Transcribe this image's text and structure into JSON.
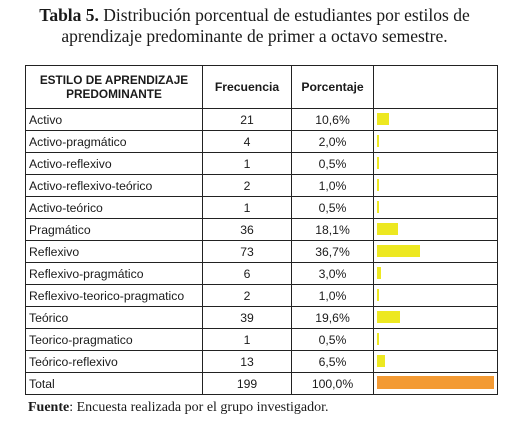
{
  "caption": {
    "label": "Tabla 5.",
    "text": "Distribución porcentual de estudiantes por estilos de aprendizaje predominante de primer a octavo semestre."
  },
  "table": {
    "headers": [
      "ESTILO DE APRENDIZAJE PREDOMINANTE",
      "Frecuencia",
      "Porcentaje",
      ""
    ],
    "rows": [
      {
        "style": "Activo",
        "frequency": "21",
        "percentage": "10,6%",
        "share": 10.6
      },
      {
        "style": "Activo-pragmático",
        "frequency": "4",
        "percentage": "2,0%",
        "share": 2.0
      },
      {
        "style": "Activo-reflexivo",
        "frequency": "1",
        "percentage": "0,5%",
        "share": 0.5
      },
      {
        "style": "Activo-reflexivo-teórico",
        "frequency": "2",
        "percentage": "1,0%",
        "share": 1.0
      },
      {
        "style": "Activo-teórico",
        "frequency": "1",
        "percentage": "0,5%",
        "share": 0.5
      },
      {
        "style": "Pragmático",
        "frequency": "36",
        "percentage": "18,1%",
        "share": 18.1
      },
      {
        "style": "Reflexivo",
        "frequency": "73",
        "percentage": "36,7%",
        "share": 36.7
      },
      {
        "style": "Reflexivo-pragmático",
        "frequency": "6",
        "percentage": "3,0%",
        "share": 3.0
      },
      {
        "style": "Reflexivo-teorico-pragmatico",
        "frequency": "2",
        "percentage": "1,0%",
        "share": 1.0
      },
      {
        "style": "Teórico",
        "frequency": "39",
        "percentage": "19,6%",
        "share": 19.6
      },
      {
        "style": "Teorico-pragmatico",
        "frequency": "1",
        "percentage": "0,5%",
        "share": 0.5
      },
      {
        "style": "Teórico-reflexivo",
        "frequency": "13",
        "percentage": "6,5%",
        "share": 6.5
      }
    ],
    "total": {
      "style": "Total",
      "frequency": "199",
      "percentage": "100,0%",
      "share": 100.0
    }
  },
  "colors": {
    "bar": "#ede821",
    "total_bar": "#f39a33"
  },
  "source": {
    "label": "Fuente",
    "text": ": Encuesta realizada por el grupo investigador."
  }
}
